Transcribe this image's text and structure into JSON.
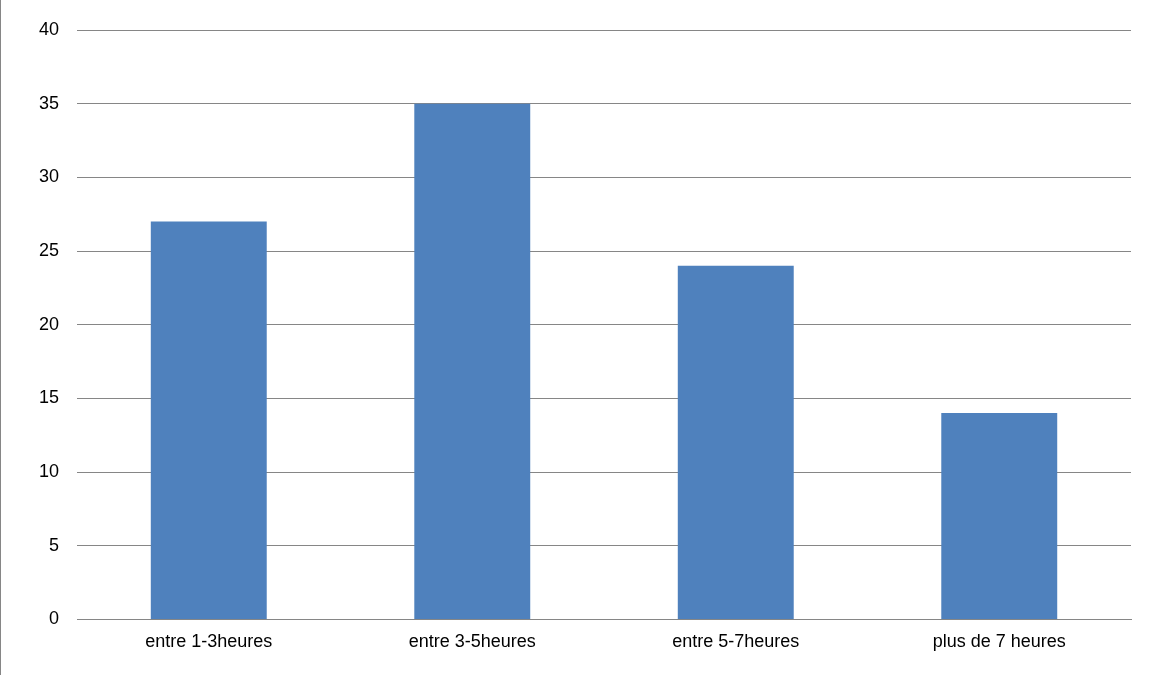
{
  "chart_data": {
    "type": "bar",
    "categories": [
      "entre 1-3heures",
      "entre 3-5heures",
      "entre 5-7heures",
      "plus de 7 heures"
    ],
    "values": [
      27,
      35,
      24,
      14
    ],
    "color": "#4f81bd",
    "ylim": [
      0,
      40
    ],
    "yticks": [
      0,
      5,
      10,
      15,
      20,
      25,
      30,
      35,
      40
    ],
    "grid": "y",
    "legend": false
  }
}
